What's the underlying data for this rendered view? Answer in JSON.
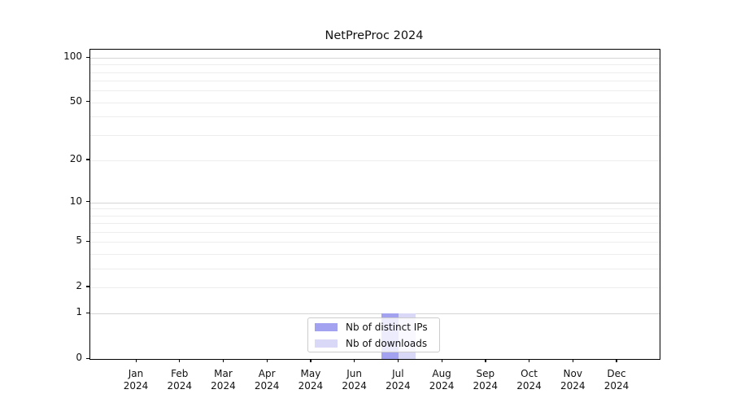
{
  "title": "NetPreProc 2024",
  "colors": {
    "bar_distinct_ips": "#a2a2f0",
    "bar_downloads": "#d9d9f7",
    "grid_minor": "#ededed",
    "grid_major": "#d5d5d5",
    "axis": "#000000",
    "text": "#111111",
    "legend_border": "#cccccc"
  },
  "legend": {
    "items": [
      {
        "label": "Nb of distinct IPs",
        "color": "#a2a2f0"
      },
      {
        "label": "Nb of downloads",
        "color": "#d9d9f7"
      }
    ]
  },
  "y_axis": {
    "tick_values": [
      0,
      1,
      2,
      5,
      10,
      20,
      50,
      100
    ],
    "major_gridlines": [
      1,
      10,
      100
    ],
    "minor_gridlines": [
      2,
      3,
      4,
      5,
      6,
      7,
      8,
      9,
      20,
      30,
      40,
      50,
      60,
      70,
      80,
      90
    ],
    "scale": "log1p"
  },
  "x_axis": {
    "months": [
      "Jan",
      "Feb",
      "Mar",
      "Apr",
      "May",
      "Jun",
      "Jul",
      "Aug",
      "Sep",
      "Oct",
      "Nov",
      "Dec"
    ],
    "year_line": "2024"
  },
  "chart_data": {
    "type": "bar",
    "title": "NetPreProc 2024",
    "categories": [
      "Jan 2024",
      "Feb 2024",
      "Mar 2024",
      "Apr 2024",
      "May 2024",
      "Jun 2024",
      "Jul 2024",
      "Aug 2024",
      "Sep 2024",
      "Oct 2024",
      "Nov 2024",
      "Dec 2024"
    ],
    "series": [
      {
        "name": "Nb of distinct IPs",
        "color": "#a2a2f0",
        "values": [
          0,
          0,
          0,
          0,
          0,
          0,
          1,
          0,
          0,
          0,
          0,
          0
        ]
      },
      {
        "name": "Nb of downloads",
        "color": "#d9d9f7",
        "values": [
          0,
          0,
          0,
          0,
          0,
          0,
          1,
          0,
          0,
          0,
          0,
          0
        ]
      }
    ],
    "xlabel": "",
    "ylabel": "",
    "yscale": "log1p",
    "yticks": [
      0,
      1,
      2,
      5,
      10,
      20,
      50,
      100
    ],
    "ylim": [
      0,
      113
    ],
    "grid": "horizontal-only",
    "legend_position": "lower center"
  }
}
